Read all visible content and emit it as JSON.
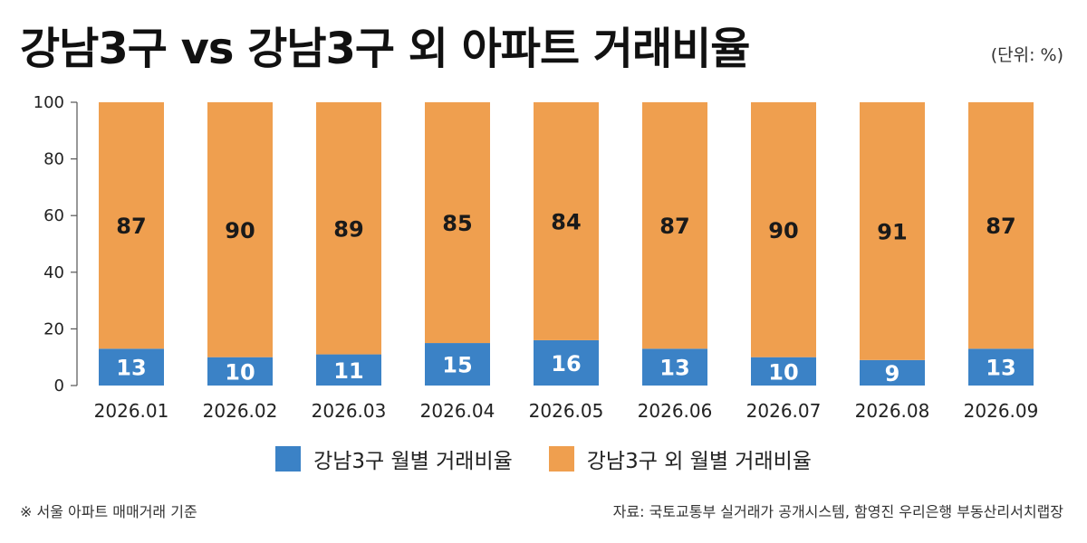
{
  "title": "강남3구 vs 강남3구 외 아파트 거래비율",
  "unit": "(단위: %)",
  "footnote": "※ 서울 아파트 매매거래 기준",
  "source": "자료: 국토교통부 실거래가 공개시스템, 함영진 우리은행 부동산리서치랩장",
  "chart_data": {
    "type": "bar",
    "stacked": true,
    "title": "강남3구 vs 강남3구 외 아파트 거래비율",
    "categories": [
      "2026.01",
      "2026.02",
      "2026.03",
      "2026.04",
      "2026.05",
      "2026.06",
      "2026.07",
      "2026.08",
      "2026.09"
    ],
    "series": [
      {
        "name": "강남3구 월별 거래비율",
        "values": [
          13,
          10,
          11,
          15,
          16,
          13,
          10,
          9,
          13
        ],
        "color": "#3b82c6"
      },
      {
        "name": "강남3구 외 월별 거래비율",
        "values": [
          87,
          90,
          89,
          85,
          84,
          87,
          90,
          91,
          87
        ],
        "color": "#ef9f4f"
      }
    ],
    "ylim": [
      0,
      100
    ],
    "yticks": [
      0,
      20,
      40,
      60,
      80,
      100
    ],
    "grid": false,
    "legend": "bottom"
  }
}
